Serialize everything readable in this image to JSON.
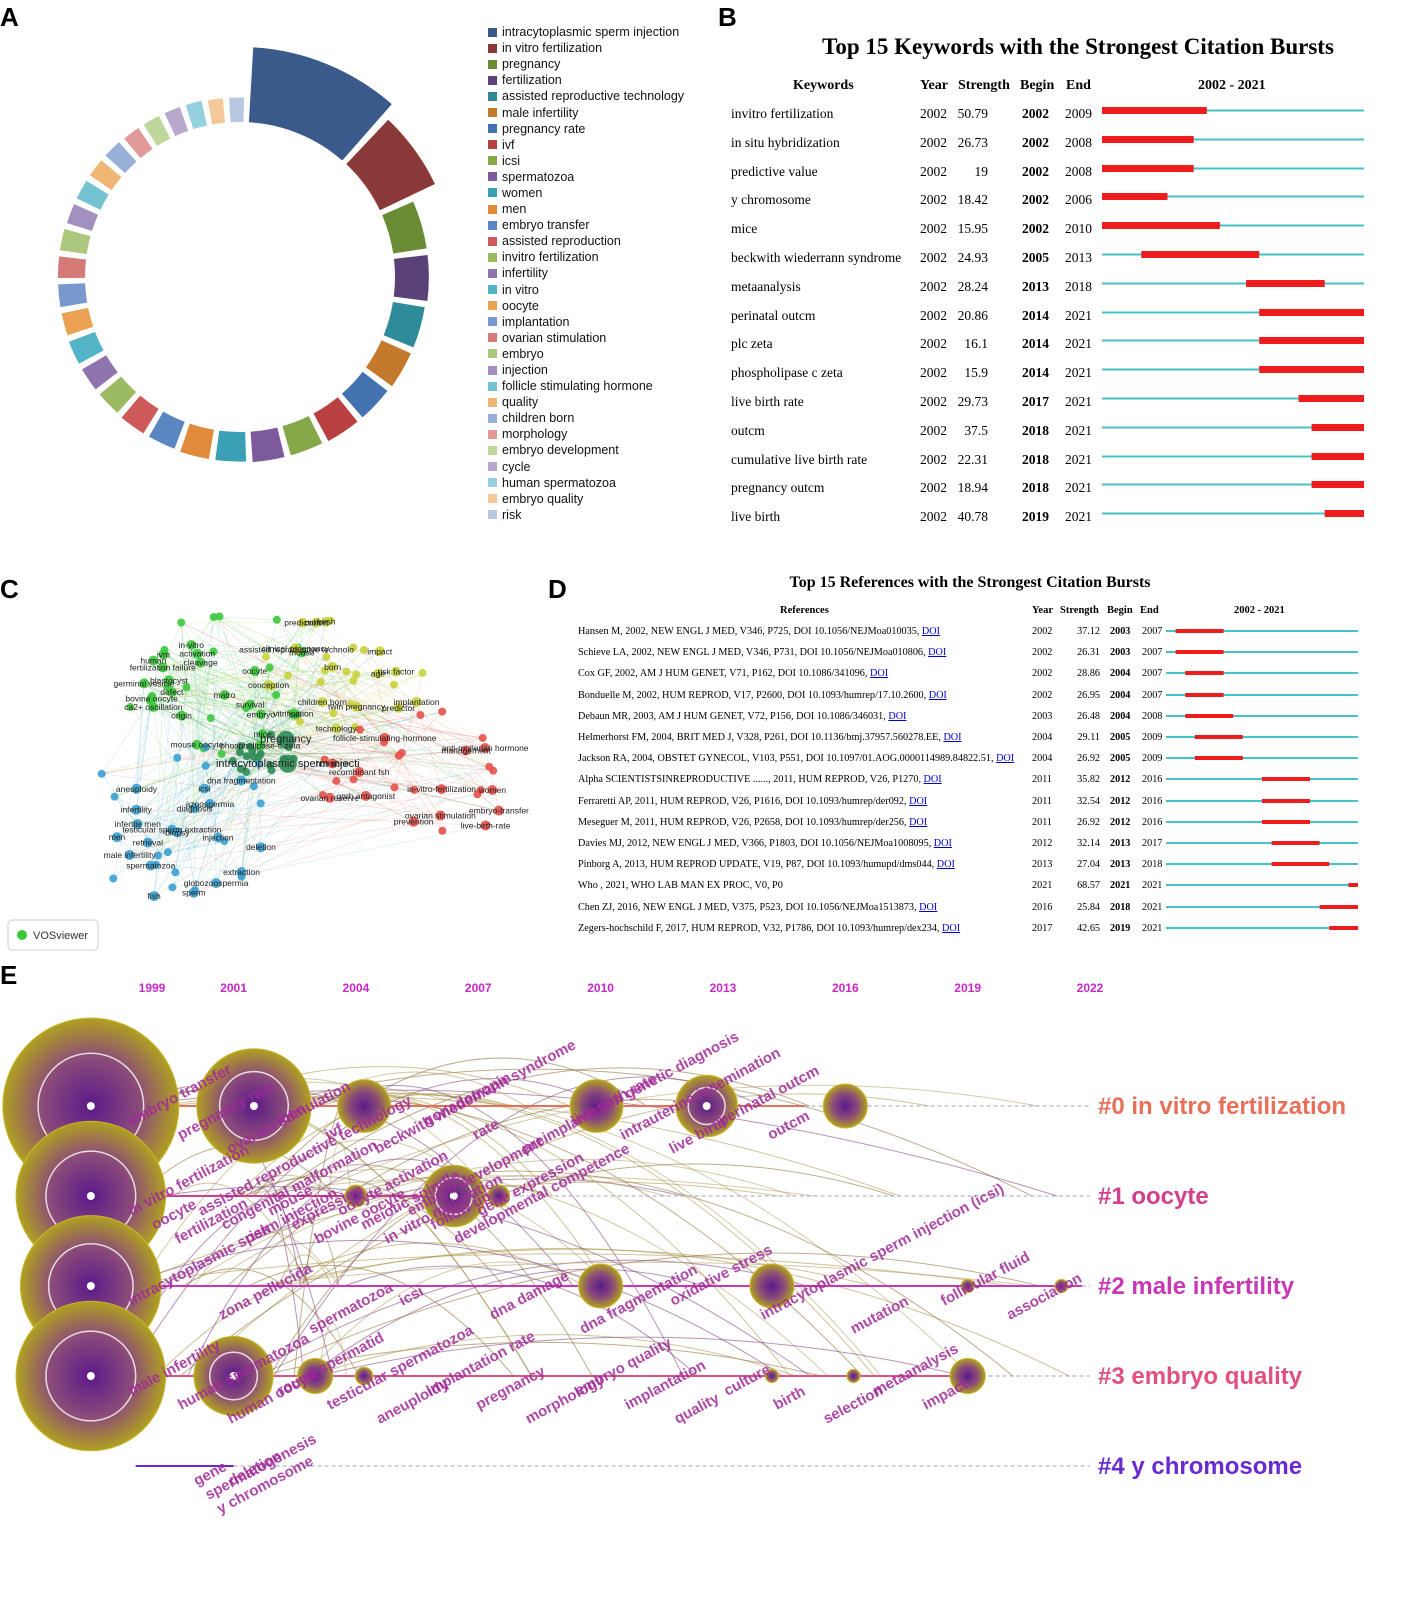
{
  "panels": {
    "a": "A",
    "b": "B",
    "c": "C",
    "d": "D",
    "e": "E"
  },
  "panel_a": {
    "legend": [
      {
        "label": "intracytoplasmic sperm injection",
        "color": "#3a5a8c"
      },
      {
        "label": "in vitro fertilization",
        "color": "#8b3838"
      },
      {
        "label": "pregnancy",
        "color": "#6a8c35"
      },
      {
        "label": "fertilization",
        "color": "#5a4278"
      },
      {
        "label": "assisted reproductive technology",
        "color": "#2f8a9a"
      },
      {
        "label": "male infertility",
        "color": "#c47a2c"
      },
      {
        "label": "pregnancy rate",
        "color": "#4372b0"
      },
      {
        "label": "ivf",
        "color": "#b84040"
      },
      {
        "label": "icsi",
        "color": "#86a848"
      },
      {
        "label": "spermatozoa",
        "color": "#7d5a9c"
      },
      {
        "label": "women",
        "color": "#3aa0b6"
      },
      {
        "label": "men",
        "color": "#e08a3c"
      },
      {
        "label": "embryo transfer",
        "color": "#5a86c2"
      },
      {
        "label": "assisted reproduction",
        "color": "#cd5a58"
      },
      {
        "label": "invitro fertilization",
        "color": "#9cba62"
      },
      {
        "label": "infertility",
        "color": "#8f74ae"
      },
      {
        "label": "in vitro",
        "color": "#52b4c6"
      },
      {
        "label": "oocyte",
        "color": "#eba254"
      },
      {
        "label": "implantation",
        "color": "#7898ce"
      },
      {
        "label": "ovarian stimulation",
        "color": "#d67a78"
      },
      {
        "label": "embryo",
        "color": "#acc87c"
      },
      {
        "label": "injection",
        "color": "#a290be"
      },
      {
        "label": "follicle stimulating hormone",
        "color": "#74c2d2"
      },
      {
        "label": "quality",
        "color": "#f0b676"
      },
      {
        "label": "children born",
        "color": "#98b0d8"
      },
      {
        "label": "morphology",
        "color": "#e29a98"
      },
      {
        "label": "embryo development",
        "color": "#c0d69c"
      },
      {
        "label": "cycle",
        "color": "#b8a8ce"
      },
      {
        "label": "human spermatozoa",
        "color": "#96d0de"
      },
      {
        "label": "embryo quality",
        "color": "#f4c898"
      },
      {
        "label": "risk",
        "color": "#b8c8e2"
      }
    ]
  },
  "chart_data": [
    {
      "type": "pie",
      "panel": "A",
      "title": "",
      "categories": [
        "intracytoplasmic sperm injection",
        "in vitro fertilization",
        "pregnancy",
        "fertilization",
        "assisted reproductive technology",
        "male infertility",
        "pregnancy rate",
        "ivf",
        "icsi",
        "spermatozoa",
        "women",
        "men",
        "embryo transfer",
        "assisted reproduction",
        "invitro fertilization",
        "infertility",
        "in vitro",
        "oocyte",
        "implantation",
        "ovarian stimulation",
        "embryo",
        "injection",
        "follicle stimulating hormone",
        "quality",
        "children born",
        "morphology",
        "embryo development",
        "cycle",
        "human spermatozoa",
        "embryo quality",
        "risk"
      ],
      "values": [
        100,
        58,
        42,
        40,
        37,
        34,
        33,
        32,
        31,
        30,
        29,
        28,
        27,
        26,
        25,
        24,
        24,
        23,
        23,
        22,
        22,
        21,
        21,
        20,
        20,
        19,
        19,
        18,
        18,
        17,
        17
      ],
      "radius_values": [
        1,
        1,
        0.58,
        0.58,
        0.56,
        0.56,
        0.55,
        0.55,
        0.54,
        0.54,
        0.53,
        0.53,
        0.52,
        0.52,
        0.51,
        0.51,
        0.51,
        0.5,
        0.5,
        0.5,
        0.5,
        0.49,
        0.49,
        0.49,
        0.49,
        0.48,
        0.48,
        0.48,
        0.48,
        0.47,
        0.47
      ]
    },
    {
      "type": "table",
      "panel": "B",
      "title": "Top 15 Keywords with the Strongest Citation Bursts",
      "columns": [
        "Keywords",
        "Year",
        "Strength",
        "Begin",
        "End",
        "2002 - 2021"
      ],
      "range": [
        2002,
        2021
      ],
      "rows": [
        {
          "keyword": "invitro fertilization",
          "year": "2002",
          "strength": "50.79",
          "begin": "2002",
          "end": "2009"
        },
        {
          "keyword": "in situ hybridization",
          "year": "2002",
          "strength": "26.73",
          "begin": "2002",
          "end": "2008"
        },
        {
          "keyword": "predictive value",
          "year": "2002",
          "strength": "19",
          "begin": "2002",
          "end": "2008"
        },
        {
          "keyword": "y chromosome",
          "year": "2002",
          "strength": "18.42",
          "begin": "2002",
          "end": "2006"
        },
        {
          "keyword": "mice",
          "year": "2002",
          "strength": "15.95",
          "begin": "2002",
          "end": "2010"
        },
        {
          "keyword": "beckwith wiederrann syndrome",
          "year": "2002",
          "strength": "24.93",
          "begin": "2005",
          "end": "2013"
        },
        {
          "keyword": "metaanalysis",
          "year": "2002",
          "strength": "28.24",
          "begin": "2013",
          "end": "2018"
        },
        {
          "keyword": "perinatal outcm",
          "year": "2002",
          "strength": "20.86",
          "begin": "2014",
          "end": "2021"
        },
        {
          "keyword": "plc zeta",
          "year": "2002",
          "strength": "16.1",
          "begin": "2014",
          "end": "2021"
        },
        {
          "keyword": "phospholipase c zeta",
          "year": "2002",
          "strength": "15.9",
          "begin": "2014",
          "end": "2021"
        },
        {
          "keyword": "live birth rate",
          "year": "2002",
          "strength": "29.73",
          "begin": "2017",
          "end": "2021"
        },
        {
          "keyword": "outcm",
          "year": "2002",
          "strength": "37.5",
          "begin": "2018",
          "end": "2021"
        },
        {
          "keyword": "cumulative live birth rate",
          "year": "2002",
          "strength": "22.31",
          "begin": "2018",
          "end": "2021"
        },
        {
          "keyword": "pregnancy outcm",
          "year": "2002",
          "strength": "18.94",
          "begin": "2018",
          "end": "2021"
        },
        {
          "keyword": "live birth",
          "year": "2002",
          "strength": "40.78",
          "begin": "2019",
          "end": "2021"
        }
      ]
    },
    {
      "type": "scatter",
      "panel": "C",
      "title": "",
      "tool_label": "VOSviewer",
      "clusters": [
        {
          "name": "green",
          "color": "#3cc83c",
          "labels": [
            "germinal vesicle",
            "survival",
            "bovine oocyte",
            "vitrification",
            "ivm",
            "mouse oocyte",
            "cleavage",
            "blastocyst",
            "activation",
            "human",
            "matro",
            "mouse",
            "embryo",
            "oocyte",
            "ca2+ oscillation",
            "in-vitro",
            "phospholipase-c zeta",
            "defect",
            "fertilization failure",
            "mice",
            "origin",
            "cell"
          ]
        },
        {
          "name": "yellow",
          "color": "#c8d23c",
          "labels": [
            "born",
            "children born",
            "twin pregnancy",
            "cohort",
            "technology",
            "risk factor",
            "assisted reproductive technolo",
            "implantation",
            "conception",
            "clinical pregnancy",
            "predictor",
            "impact",
            "age",
            "fresh",
            "prediction"
          ]
        },
        {
          "name": "red",
          "color": "#e8504a",
          "labels": [
            "prevention",
            "embryo-transfer",
            "in-vitro-fertilization",
            "ovarian stimulation",
            "women",
            "gnrh antagonist",
            "hormone",
            "recombinant fsh",
            "live-birth-rate",
            "follicle-stimulating-hormone",
            "anti-mullerian hormone",
            "ovarian reserve",
            "management"
          ]
        },
        {
          "name": "blue",
          "color": "#3ca0d2",
          "labels": [
            "globozoospermia",
            "sperm",
            "fish",
            "aneuploidy",
            "icsi",
            "spermatozoa",
            "dna fragmentation",
            "injection",
            "infertile men",
            "male infertility",
            "biopsy",
            "deletion",
            "men",
            "azoospermia",
            "retrieval",
            "testicular sperm extraction",
            "extraction",
            "diagnosis",
            "infertility"
          ]
        },
        {
          "name": "center",
          "color": "#2e8b57",
          "labels": [
            "intracytoplasmic sperm injecti",
            "pregnancy"
          ]
        }
      ]
    },
    {
      "type": "table",
      "panel": "D",
      "title": "Top 15 References with the Strongest Citation Bursts",
      "columns": [
        "References",
        "Year",
        "Strength",
        "Begin",
        "End",
        "2002 - 2021"
      ],
      "range": [
        2002,
        2021
      ],
      "rows": [
        {
          "ref": "Hansen M, 2002, NEW ENGL J MED, V346, P725, DOI 10.1056/NEJMoa010035,",
          "link": "DOI",
          "year": "2002",
          "strength": "37.12",
          "begin": "2003",
          "end": "2007"
        },
        {
          "ref": "Schieve LA, 2002, NEW ENGL J MED, V346, P731, DOI 10.1056/NEJMoa010806,",
          "link": "DOI",
          "year": "2002",
          "strength": "26.31",
          "begin": "2003",
          "end": "2007"
        },
        {
          "ref": "Cox GF, 2002, AM J HUM GENET, V71, P162, DOI 10.1086/341096,",
          "link": "DOI",
          "year": "2002",
          "strength": "28.86",
          "begin": "2004",
          "end": "2007"
        },
        {
          "ref": "Bonduelle M, 2002, HUM REPROD, V17, P2600, DOI 10.1093/humrep/17.10.2600,",
          "link": "DOI",
          "year": "2002",
          "strength": "26.95",
          "begin": "2004",
          "end": "2007"
        },
        {
          "ref": "Debaun MR, 2003, AM J HUM GENET, V72, P156, DOI 10.1086/346031,",
          "link": "DOI",
          "year": "2003",
          "strength": "26.48",
          "begin": "2004",
          "end": "2008"
        },
        {
          "ref": "Helmerhorst FM, 2004, BRIT MED J, V328, P261, DOI 10.1136/bmj.37957.560278.EE,",
          "link": "DOI",
          "year": "2004",
          "strength": "29.11",
          "begin": "2005",
          "end": "2009"
        },
        {
          "ref": "Jackson RA, 2004, OBSTET GYNECOL, V103, P551, DOI 10.1097/01.AOG.0000114989.84822.51,",
          "link": "DOI",
          "year": "2004",
          "strength": "26.92",
          "begin": "2005",
          "end": "2009"
        },
        {
          "ref": "Alpha SCIENTISTSINREPRODUCTIVE ......, 2011, HUM REPROD, V26, P1270,",
          "link": "DOI",
          "year": "2011",
          "strength": "35.82",
          "begin": "2012",
          "end": "2016"
        },
        {
          "ref": "Ferraretti AP, 2011, HUM REPROD, V26, P1616, DOI 10.1093/humrep/der092,",
          "link": "DOI",
          "year": "2011",
          "strength": "32.54",
          "begin": "2012",
          "end": "2016"
        },
        {
          "ref": "Meseguer M, 2011, HUM REPROD, V26, P2658, DOI 10.1093/humrep/der256,",
          "link": "DOI",
          "year": "2011",
          "strength": "26.92",
          "begin": "2012",
          "end": "2016"
        },
        {
          "ref": "Davies MJ, 2012, NEW ENGL J MED, V366, P1803, DOI 10.1056/NEJMoa1008095,",
          "link": "DOI",
          "year": "2012",
          "strength": "32.14",
          "begin": "2013",
          "end": "2017"
        },
        {
          "ref": "Pinborg A, 2013, HUM REPROD UPDATE, V19, P87, DOI 10.1093/humupd/dms044,",
          "link": "DOI",
          "year": "2013",
          "strength": "27.04",
          "begin": "2013",
          "end": "2018"
        },
        {
          "ref": "Who , 2021, WHO LAB MAN EX PROC, V0, P0",
          "link": "",
          "year": "2021",
          "strength": "68.57",
          "begin": "2021",
          "end": "2021"
        },
        {
          "ref": "Chen ZJ, 2016, NEW ENGL J MED, V375, P523, DOI 10.1056/NEJMoa1513873,",
          "link": "DOI",
          "year": "2016",
          "strength": "25.84",
          "begin": "2018",
          "end": "2021"
        },
        {
          "ref": "Zegers-hochschild F, 2017, HUM REPROD, V32, P1786, DOI 10.1093/humrep/dex234,",
          "link": "DOI",
          "year": "2017",
          "strength": "42.65",
          "begin": "2019",
          "end": "2021"
        }
      ]
    },
    {
      "type": "line",
      "panel": "E",
      "title": "",
      "x_ticks": [
        "1999",
        "2001",
        "2004",
        "2007",
        "2010",
        "2013",
        "2016",
        "2019",
        "2022"
      ],
      "x_range": [
        1999,
        2022
      ],
      "clusters": [
        {
          "label": "#0 in vitro fertilization",
          "color": "#e8705a",
          "start": 1997,
          "end": 2015,
          "nodes": [
            {
              "year": 1997.5,
              "size": 4
            },
            {
              "year": 2001.5,
              "size": 2.6
            },
            {
              "year": 2004.2,
              "size": 1.2
            },
            {
              "year": 2009.9,
              "size": 1.2
            },
            {
              "year": 2012.6,
              "size": 1.4
            },
            {
              "year": 2016,
              "size": 1
            }
          ],
          "terms": [
            "embryo transfer",
            "pregnancy rate",
            "ovarian stimulation",
            "men",
            "ivf",
            "beckwith wiedemann syndrome",
            "gonadotropin",
            "rate",
            "preimplantation genetic diagnosis",
            "live birth rate",
            "intrauterine insemination",
            "live birth",
            "perinatal outcm",
            "outcm"
          ]
        },
        {
          "label": "#1 oocyte",
          "color": "#d2408c",
          "start": 1997,
          "end": 2007.5,
          "nodes": [
            {
              "year": 1997.5,
              "size": 3.4
            },
            {
              "year": 2004,
              "size": 0.5
            },
            {
              "year": 2006.4,
              "size": 1.4
            },
            {
              "year": 2007.5,
              "size": 0.5
            }
          ],
          "terms": [
            "in vitro fertilization",
            "oocyte",
            "fertilization",
            "assisted reproductive technology",
            "congenital malformation",
            "risk",
            "mouse",
            "expression",
            "bovine oocyte",
            "oocyte activation",
            "meiotic spindle",
            "in vitro maturation",
            "embryo development",
            "follow up",
            "developmental competence",
            "gene expression"
          ]
        },
        {
          "label": "#2 male infertility",
          "color": "#c837b4",
          "start": 1997,
          "end": 2021.8,
          "nodes": [
            {
              "year": 1997.5,
              "size": 3.2
            },
            {
              "year": 2010,
              "size": 1
            },
            {
              "year": 2014.2,
              "size": 1
            },
            {
              "year": 2019,
              "size": 0.3
            },
            {
              "year": 2021.3,
              "size": 0.3
            }
          ],
          "terms": [
            "intracytoplasmic sperm injection",
            "zona pellucida",
            "spermatozoa",
            "icsi",
            "dna damage",
            "dna fragmentation",
            "oxidative stress",
            "intracytoplasmic sperm injection (icsi)",
            "mutation",
            "follicular fluid",
            "association"
          ]
        },
        {
          "label": "#3 embryo quality",
          "color": "#e05080",
          "start": 1997,
          "end": 2019,
          "nodes": [
            {
              "year": 1997.5,
              "size": 3.4
            },
            {
              "year": 2001,
              "size": 1.8
            },
            {
              "year": 2003,
              "size": 0.8
            },
            {
              "year": 2004.2,
              "size": 0.4
            },
            {
              "year": 2014.2,
              "size": 0.3
            },
            {
              "year": 2016.2,
              "size": 0.3
            },
            {
              "year": 2019,
              "size": 0.8
            }
          ],
          "terms": [
            "male infertility",
            "human spermatozoa",
            "human oocyte",
            "round spermatid",
            "testicular spermatozoa",
            "aneuploidy",
            "implantation rate",
            "pregnancy",
            "morphology",
            "embryo quality",
            "implantation",
            "quality",
            "culture",
            "birth",
            "selection",
            "metaanalysis",
            "impact"
          ]
        },
        {
          "label": "#4 y chromosome",
          "color": "#6a2ad2",
          "start": 1998.6,
          "end": 2001,
          "nodes": [],
          "terms": [
            "gene",
            "spermatogenesis",
            "y chromosome",
            "deletion"
          ]
        }
      ]
    }
  ],
  "panel_c": {
    "tool_label": "VOSviewer"
  }
}
